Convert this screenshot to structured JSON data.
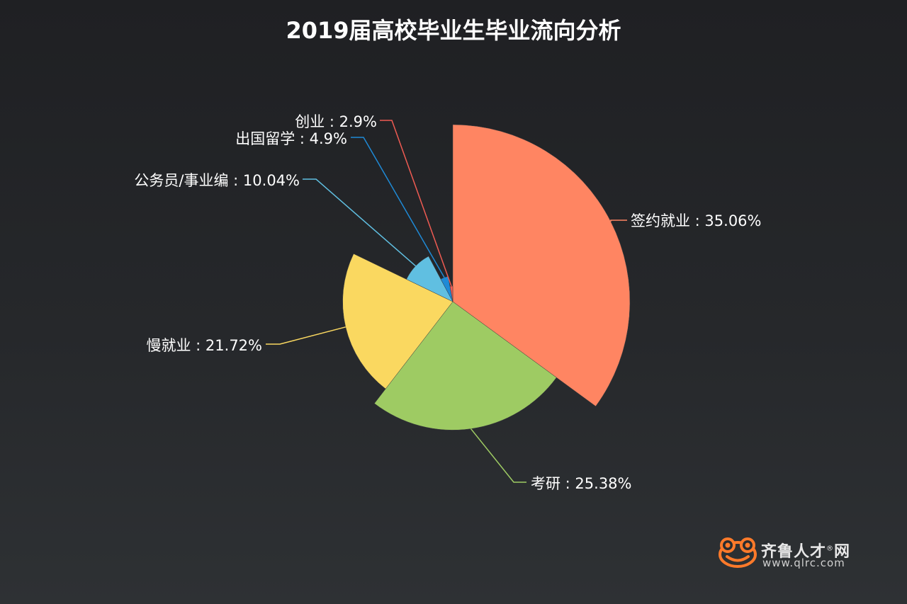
{
  "chart_data": {
    "type": "pie",
    "variant": "rose",
    "title": "2019届高校毕业生毕业流向分析",
    "slices": [
      {
        "name": "签约就业",
        "value": 35.06,
        "label": "签约就业 : 35.06%",
        "color": "#ff8562"
      },
      {
        "name": "考研",
        "value": 25.38,
        "label": "考研 : 25.38%",
        "color": "#9ecb63"
      },
      {
        "name": "慢就业",
        "value": 21.72,
        "label": "慢就业 : 21.72%",
        "color": "#fad860"
      },
      {
        "name": "公务员/事业编",
        "value": 10.04,
        "label": "公务员/事业编 : 10.04%",
        "color": "#60bfe1"
      },
      {
        "name": "出国留学",
        "value": 4.9,
        "label": "出国留学 : 4.9%",
        "color": "#1f8ad6"
      },
      {
        "name": "创业",
        "value": 2.9,
        "label": "创业 : 2.9%",
        "color": "#ef5b52"
      }
    ]
  },
  "watermark": {
    "brand": "齐鲁人才",
    "registered": "®",
    "suffix": "网",
    "url": "www.qlrc.com",
    "icon": "frog-logo-icon",
    "color": "#ff7a2a"
  }
}
